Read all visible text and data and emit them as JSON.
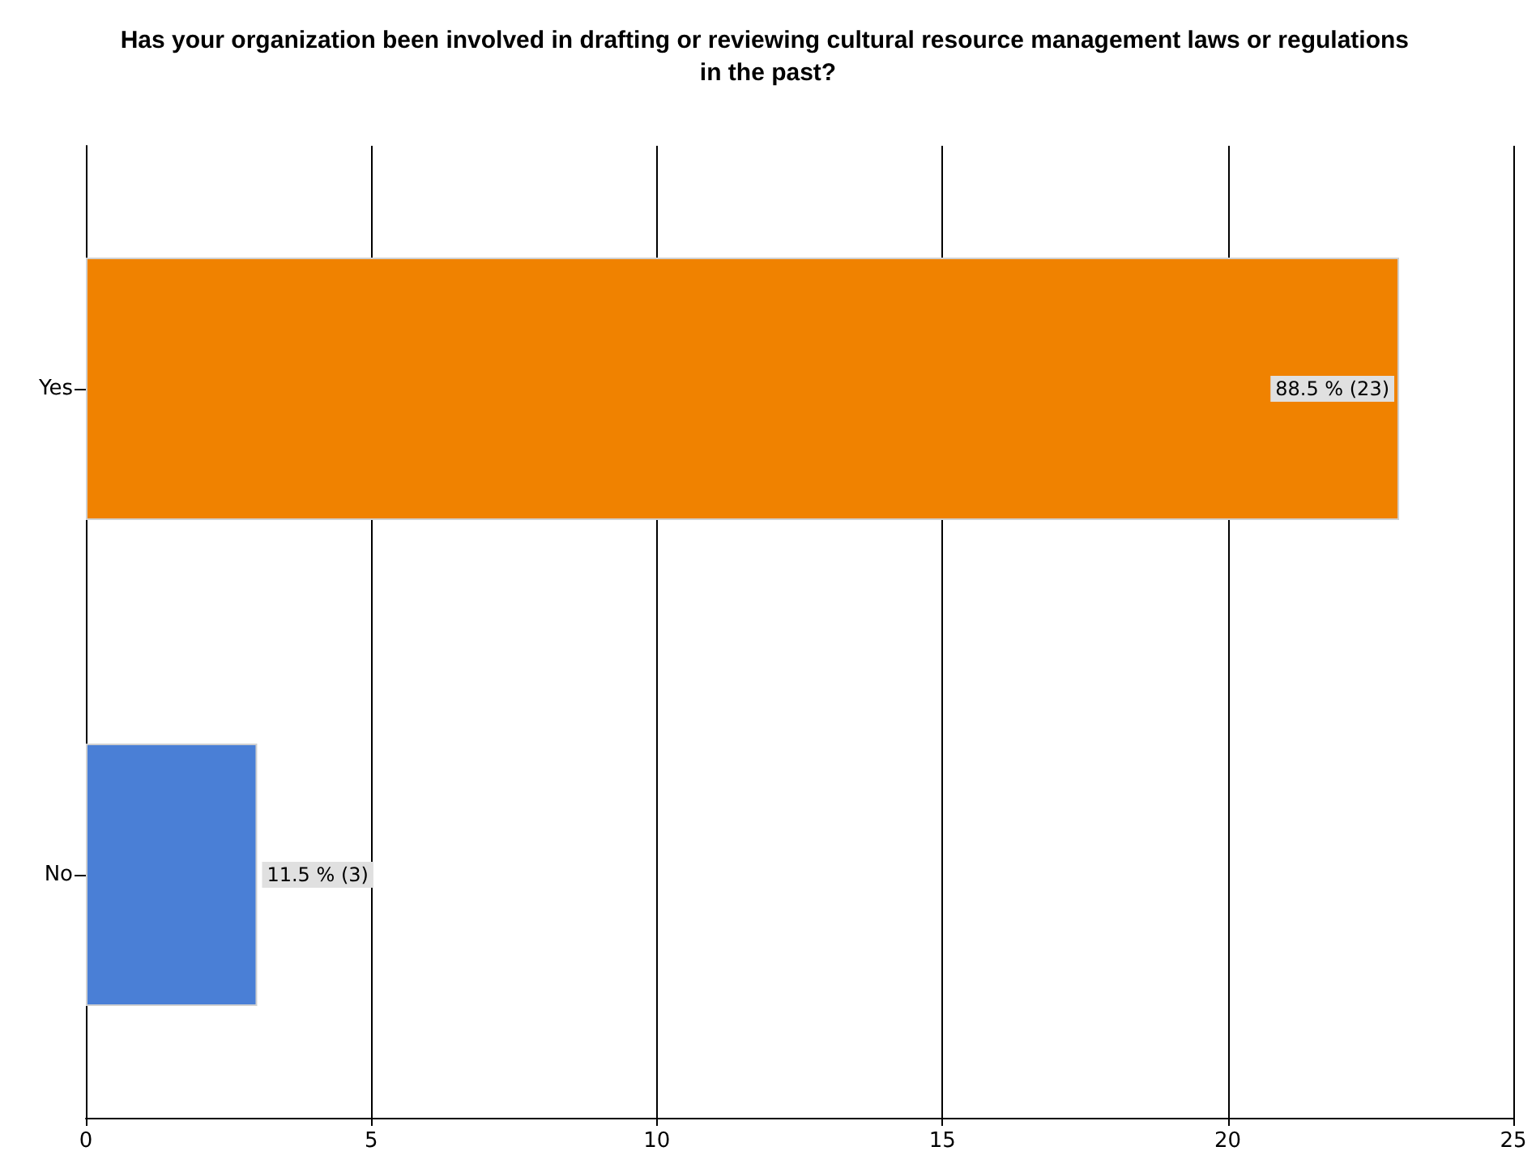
{
  "chart_data": {
    "type": "bar",
    "orientation": "horizontal",
    "title": "Has your organization been involved in drafting or reviewing cultural resource management laws or regulations in the past?",
    "categories": [
      "Yes",
      "No"
    ],
    "values": [
      23,
      3
    ],
    "colors": [
      "#f08200",
      "#4a7fd6"
    ],
    "value_labels": [
      "88.5 % (23)",
      "11.5 % (3)"
    ],
    "xlim": [
      0,
      25
    ],
    "xticks": [
      0,
      5,
      10,
      15,
      20,
      25
    ],
    "grid": "x"
  }
}
